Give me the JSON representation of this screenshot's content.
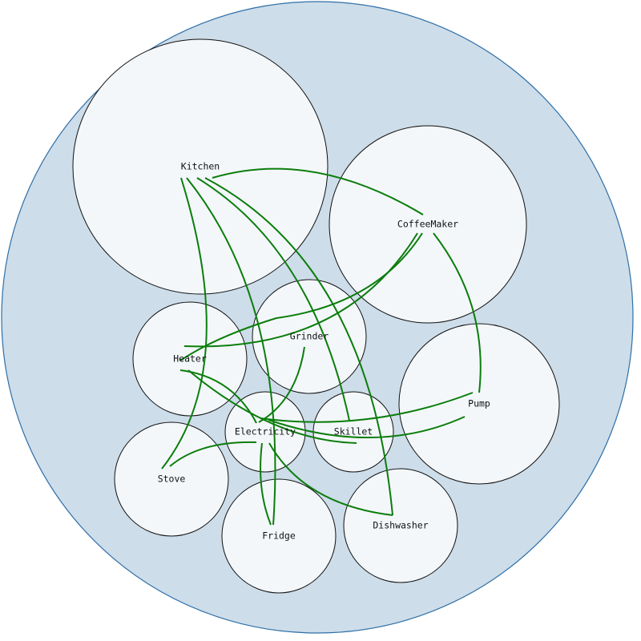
{
  "colors": {
    "container_fill": "#cddde9",
    "container_stroke": "#2f6fa8",
    "node_fill": "#f3f7fa",
    "edge": "#0b7d0b"
  },
  "nodes": {
    "kitchen": "Kitchen",
    "coffeemaker": "CoffeeMaker",
    "grinder": "Grinder",
    "heater": "Heater",
    "pump": "Pump",
    "electricity": "Electricity",
    "skillet": "Skillet",
    "stove": "Stove",
    "fridge": "Fridge",
    "dishwasher": "Dishwasher"
  },
  "edges": [
    {
      "from": "Kitchen",
      "to": "CoffeeMaker"
    },
    {
      "from": "Kitchen",
      "to": "Stove"
    },
    {
      "from": "Kitchen",
      "to": "Fridge"
    },
    {
      "from": "Kitchen",
      "to": "Skillet"
    },
    {
      "from": "Kitchen",
      "to": "Dishwasher"
    },
    {
      "from": "CoffeeMaker",
      "to": "Heater"
    },
    {
      "from": "CoffeeMaker",
      "to": "Electricity"
    },
    {
      "from": "CoffeeMaker",
      "to": "Pump"
    },
    {
      "from": "Grinder",
      "to": "Electricity"
    },
    {
      "from": "Heater",
      "to": "Electricity"
    },
    {
      "from": "Heater",
      "to": "Skillet"
    },
    {
      "from": "Pump",
      "to": "Electricity"
    },
    {
      "from": "Stove",
      "to": "Electricity"
    },
    {
      "from": "Electricity",
      "to": "Fridge"
    },
    {
      "from": "Electricity",
      "to": "Dishwasher"
    }
  ]
}
